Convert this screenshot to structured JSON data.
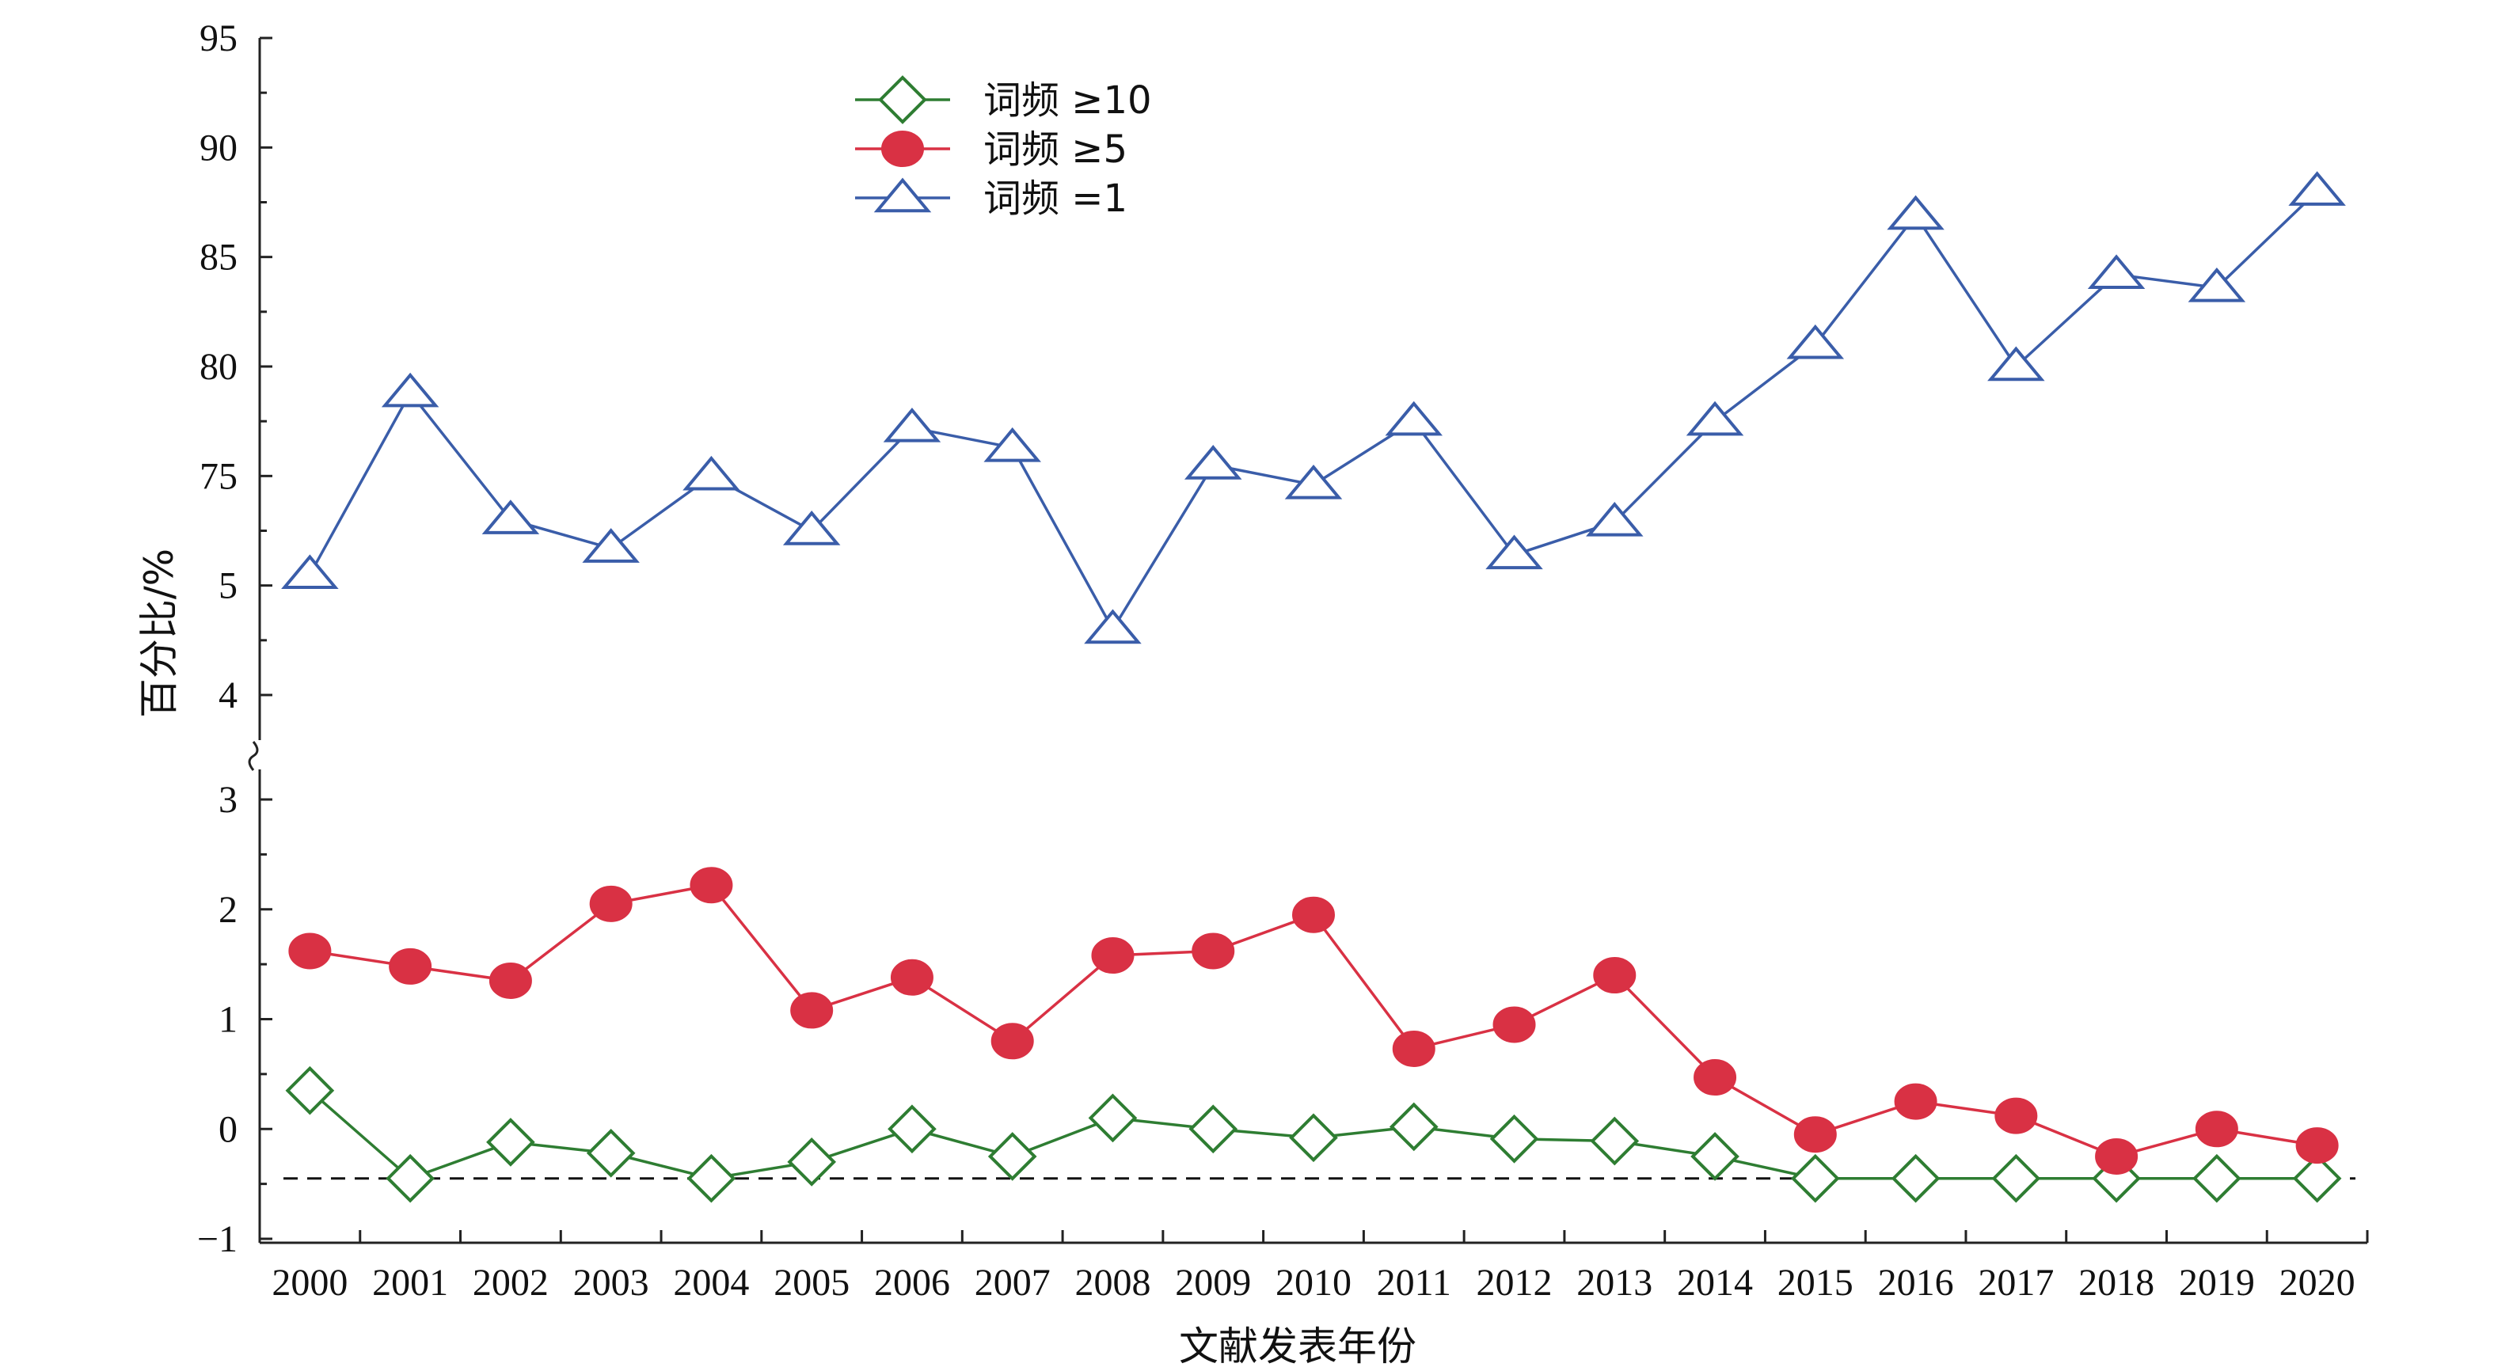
{
  "chart_data": {
    "type": "line",
    "xlabel": "文献发表年份",
    "ylabel": "百分比/%",
    "categories": [
      "2000",
      "2001",
      "2002",
      "2003",
      "2004",
      "2005",
      "2006",
      "2007",
      "2008",
      "2009",
      "2010",
      "2011",
      "2012",
      "2013",
      "2014",
      "2015",
      "2016",
      "2017",
      "2018",
      "2019",
      "2020"
    ],
    "upper_ticks": [
      "95",
      "90",
      "85",
      "80",
      "75",
      "5",
      "4"
    ],
    "lower_ticks": [
      "3",
      "2",
      "1",
      "0",
      "−1"
    ],
    "axis_break": true,
    "reference_line_style": "dashed",
    "series": [
      {
        "name": "词频 ≥10",
        "color": "#2e7d32",
        "marker": "diamond-open",
        "panel": "lower",
        "values": [
          0.35,
          -0.45,
          -0.12,
          -0.22,
          -0.45,
          -0.3,
          0.0,
          -0.25,
          0.1,
          0.0,
          -0.08,
          0.02,
          -0.09,
          -0.11,
          -0.25,
          -0.45,
          -0.45,
          -0.45,
          -0.45,
          -0.45,
          -0.45
        ]
      },
      {
        "name": "词频 ≥5",
        "color": "#d93144",
        "marker": "circle-filled",
        "panel": "lower",
        "values": [
          1.62,
          1.48,
          1.35,
          2.05,
          2.22,
          1.08,
          1.38,
          0.8,
          1.58,
          1.62,
          1.95,
          0.73,
          0.95,
          1.4,
          0.47,
          -0.05,
          0.25,
          0.12,
          -0.25,
          0.0,
          -0.15
        ]
      },
      {
        "name": "词频 =1",
        "color": "#3a5da9",
        "marker": "triangle-open",
        "panel": "upper",
        "tick_position_values": [
          95,
          90,
          85,
          80,
          75,
          70,
          65
        ],
        "values": [
          70.5,
          78.8,
          73.0,
          71.7,
          75.0,
          72.5,
          77.2,
          76.3,
          68.0,
          75.5,
          74.6,
          77.5,
          71.4,
          72.9,
          77.5,
          81.0,
          86.9,
          80.0,
          84.2,
          83.6,
          88.0
        ]
      }
    ],
    "legend": {
      "position": "top-center"
    }
  }
}
